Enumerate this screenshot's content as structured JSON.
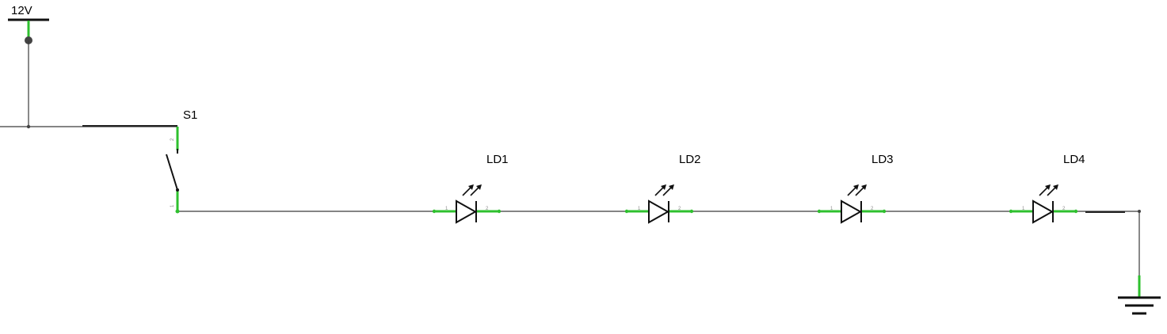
{
  "power": {
    "label": "12V"
  },
  "switch": {
    "ref": "S1",
    "pin_top": "2",
    "pin_bottom": "1"
  },
  "leds": [
    {
      "ref": "LD1",
      "pin_left": "1",
      "pin_right": "2"
    },
    {
      "ref": "LD2",
      "pin_left": "1",
      "pin_right": "2"
    },
    {
      "ref": "LD3",
      "pin_left": "1",
      "pin_right": "2"
    },
    {
      "ref": "LD4",
      "pin_left": "1",
      "pin_right": "2"
    }
  ],
  "colors": {
    "wire": "#3a3a3a",
    "pin": "#2ec02e",
    "symbol": "#111111"
  }
}
